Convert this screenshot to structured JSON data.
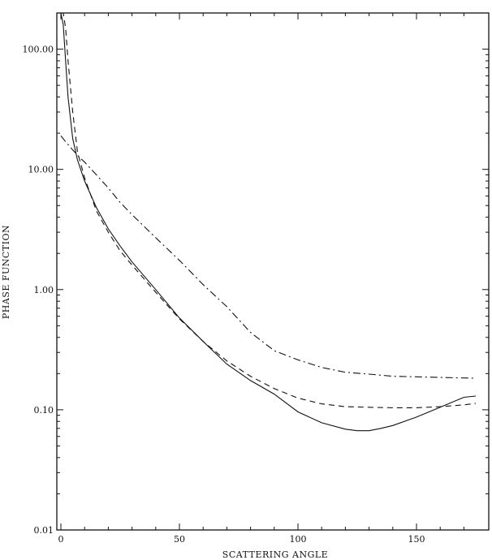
{
  "chart_data": {
    "type": "line",
    "title": "",
    "xlabel": "SCATTERING ANGLE",
    "ylabel": "PHASE FUNCTION",
    "xlim": [
      0,
      180
    ],
    "ylim": [
      0.01,
      200
    ],
    "yscale": "log",
    "grid": false,
    "legend": "none",
    "x_ticks": [
      {
        "value": 0,
        "label": "0"
      },
      {
        "value": 50,
        "label": "50"
      },
      {
        "value": 100,
        "label": "100"
      },
      {
        "value": 150,
        "label": "150"
      }
    ],
    "y_ticks": [
      {
        "value": 0.01,
        "label": "0.01"
      },
      {
        "value": 0.1,
        "label": "0.10"
      },
      {
        "value": 1,
        "label": "1.00"
      },
      {
        "value": 10,
        "label": "10.00"
      },
      {
        "value": 100,
        "label": "100.00"
      }
    ],
    "series": [
      {
        "style": "solid",
        "x": [
          0,
          1,
          2,
          3,
          5,
          7,
          10,
          15,
          20,
          25,
          30,
          40,
          50,
          60,
          70,
          80,
          90,
          100,
          110,
          120,
          125,
          130,
          135,
          140,
          150,
          160,
          170,
          175
        ],
        "y": [
          200,
          160,
          80,
          40,
          18,
          12,
          8,
          4.8,
          3.2,
          2.3,
          1.7,
          1.0,
          0.58,
          0.37,
          0.24,
          0.175,
          0.135,
          0.096,
          0.078,
          0.069,
          0.067,
          0.067,
          0.07,
          0.074,
          0.087,
          0.105,
          0.127,
          0.13
        ]
      },
      {
        "style": "dashed",
        "x": [
          0,
          1,
          2,
          3,
          5,
          7,
          10,
          15,
          20,
          25,
          30,
          40,
          50,
          60,
          70,
          80,
          90,
          100,
          110,
          120,
          130,
          140,
          150,
          160,
          170,
          175
        ],
        "y": [
          200,
          200,
          150,
          80,
          30,
          14,
          8.5,
          4.5,
          3.0,
          2.1,
          1.6,
          0.95,
          0.57,
          0.37,
          0.255,
          0.19,
          0.15,
          0.125,
          0.112,
          0.106,
          0.105,
          0.104,
          0.104,
          0.106,
          0.11,
          0.113
        ]
      },
      {
        "style": "dash-dot",
        "x": [
          0,
          2,
          5,
          8,
          10,
          15,
          20,
          25,
          30,
          40,
          50,
          60,
          70,
          80,
          90,
          100,
          110,
          120,
          130,
          140,
          150,
          160,
          170,
          175
        ],
        "y": [
          19,
          17,
          14.5,
          12.5,
          11.5,
          9.0,
          7.0,
          5.3,
          4.2,
          2.7,
          1.75,
          1.1,
          0.72,
          0.44,
          0.31,
          0.26,
          0.225,
          0.205,
          0.198,
          0.19,
          0.188,
          0.186,
          0.184,
          0.183
        ]
      }
    ]
  }
}
